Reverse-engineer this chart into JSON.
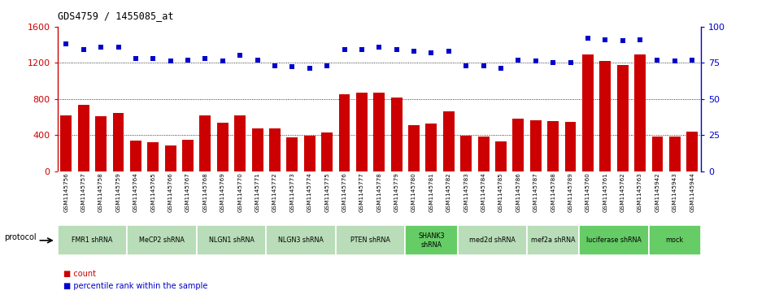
{
  "title": "GDS4759 / 1455085_at",
  "samples": [
    "GSM1145756",
    "GSM1145757",
    "GSM1145758",
    "GSM1145759",
    "GSM1145764",
    "GSM1145765",
    "GSM1145766",
    "GSM1145767",
    "GSM1145768",
    "GSM1145769",
    "GSM1145770",
    "GSM1145771",
    "GSM1145772",
    "GSM1145773",
    "GSM1145774",
    "GSM1145775",
    "GSM1145776",
    "GSM1145777",
    "GSM1145778",
    "GSM1145779",
    "GSM1145780",
    "GSM1145781",
    "GSM1145782",
    "GSM1145783",
    "GSM1145784",
    "GSM1145785",
    "GSM1145786",
    "GSM1145787",
    "GSM1145788",
    "GSM1145789",
    "GSM1145760",
    "GSM1145761",
    "GSM1145762",
    "GSM1145763",
    "GSM1145942",
    "GSM1145943",
    "GSM1145944"
  ],
  "counts": [
    620,
    730,
    610,
    640,
    335,
    320,
    280,
    350,
    620,
    540,
    620,
    475,
    475,
    370,
    390,
    430,
    850,
    870,
    870,
    810,
    510,
    530,
    660,
    390,
    380,
    330,
    580,
    560,
    550,
    545,
    1290,
    1220,
    1175,
    1290,
    380,
    380,
    440
  ],
  "percentiles": [
    88,
    84,
    86,
    86,
    78,
    78,
    76,
    77,
    78,
    76,
    80,
    77,
    73,
    72,
    71,
    73,
    84,
    84,
    86,
    84,
    83,
    82,
    83,
    73,
    73,
    71,
    77,
    76,
    75,
    75,
    92,
    91,
    90,
    91,
    77,
    76,
    77
  ],
  "ylim_left": [
    0,
    1600
  ],
  "ylim_right": [
    0,
    100
  ],
  "yticks_left": [
    0,
    400,
    800,
    1200,
    1600
  ],
  "yticks_right": [
    0,
    25,
    50,
    75,
    100
  ],
  "bar_color": "#cc0000",
  "dot_color": "#0000cc",
  "protocol_groups": [
    {
      "label": "FMR1 shRNA",
      "start": 0,
      "end": 4,
      "color": "#b8ddb8"
    },
    {
      "label": "MeCP2 shRNA",
      "start": 4,
      "end": 8,
      "color": "#b8ddb8"
    },
    {
      "label": "NLGN1 shRNA",
      "start": 8,
      "end": 12,
      "color": "#b8ddb8"
    },
    {
      "label": "NLGN3 shRNA",
      "start": 12,
      "end": 16,
      "color": "#b8ddb8"
    },
    {
      "label": "PTEN shRNA",
      "start": 16,
      "end": 20,
      "color": "#b8ddb8"
    },
    {
      "label": "SHANK3\nshRNA",
      "start": 20,
      "end": 23,
      "color": "#66cc66"
    },
    {
      "label": "med2d shRNA",
      "start": 23,
      "end": 27,
      "color": "#b8ddb8"
    },
    {
      "label": "mef2a shRNA",
      "start": 27,
      "end": 30,
      "color": "#b8ddb8"
    },
    {
      "label": "luciferase shRNA",
      "start": 30,
      "end": 34,
      "color": "#66cc66"
    },
    {
      "label": "mock",
      "start": 34,
      "end": 37,
      "color": "#66cc66"
    }
  ],
  "bg_color": "#ffffff",
  "tick_label_color": "#cc0000",
  "right_tick_color": "#0000cc",
  "label_bg_color": "#c8c8c8"
}
